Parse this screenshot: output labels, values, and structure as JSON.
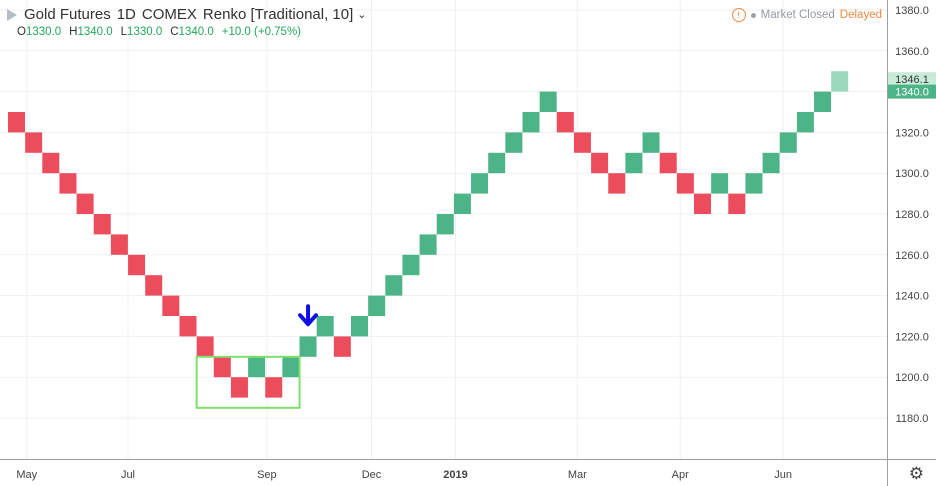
{
  "header": {
    "symbol": "Gold Futures",
    "interval": "1D",
    "exchange": "COMEX",
    "chart_style": "Renko [Traditional, 10]",
    "ohlc": {
      "o_label": "O",
      "o_value": "1330.0",
      "h_label": "H",
      "h_value": "1340.0",
      "l_label": "L",
      "l_value": "1330.0",
      "c_label": "C",
      "c_value": "1340.0",
      "change": "+10.0 (+0.75%)"
    }
  },
  "status": {
    "market": "Market Closed",
    "feed": "Delayed"
  },
  "icons": {
    "symbol_flag": "flag-icon",
    "warning": "warning-icon",
    "settings": "gear-icon",
    "signal": "down-arrow-icon"
  },
  "colors": {
    "up": "#4cb486",
    "down": "#eb4d5c",
    "projected": "#9bd9bd",
    "highlight_box": "#7ee06a",
    "arrow": "#1010e6",
    "price_tag_projected": "#c9ecd9",
    "price_tag_last": "#4cb486"
  },
  "chart_data": {
    "type": "renko",
    "box_size": 10,
    "y_ticks": [
      1180,
      1200,
      1220,
      1240,
      1260,
      1280,
      1300,
      1320,
      1340,
      1360,
      1380
    ],
    "y_tick_labels": [
      "1180.0",
      "1200.0",
      "1220.0",
      "1240.0",
      "1260.0",
      "1280.0",
      "1300.0",
      "1320.0",
      "1340.0",
      "1360.0",
      "1380.0"
    ],
    "ylim": [
      1160,
      1390
    ],
    "x_labels": [
      "May",
      "Jul",
      "Sep",
      "Dec",
      "2019",
      "Mar",
      "Apr",
      "Jun"
    ],
    "x_label_bricks": [
      0.6,
      6.5,
      14.6,
      20.7,
      25.6,
      32.7,
      38.7,
      44.7
    ],
    "bricks": [
      {
        "low": 1320,
        "dir": "down"
      },
      {
        "low": 1310,
        "dir": "down"
      },
      {
        "low": 1300,
        "dir": "down"
      },
      {
        "low": 1290,
        "dir": "down"
      },
      {
        "low": 1280,
        "dir": "down"
      },
      {
        "low": 1270,
        "dir": "down"
      },
      {
        "low": 1260,
        "dir": "down"
      },
      {
        "low": 1250,
        "dir": "down"
      },
      {
        "low": 1240,
        "dir": "down"
      },
      {
        "low": 1230,
        "dir": "down"
      },
      {
        "low": 1220,
        "dir": "down"
      },
      {
        "low": 1210,
        "dir": "down"
      },
      {
        "low": 1200,
        "dir": "down"
      },
      {
        "low": 1190,
        "dir": "down"
      },
      {
        "low": 1200,
        "dir": "up"
      },
      {
        "low": 1190,
        "dir": "down"
      },
      {
        "low": 1200,
        "dir": "up"
      },
      {
        "low": 1210,
        "dir": "up"
      },
      {
        "low": 1220,
        "dir": "up"
      },
      {
        "low": 1210,
        "dir": "down"
      },
      {
        "low": 1220,
        "dir": "up"
      },
      {
        "low": 1230,
        "dir": "up"
      },
      {
        "low": 1240,
        "dir": "up"
      },
      {
        "low": 1250,
        "dir": "up"
      },
      {
        "low": 1260,
        "dir": "up"
      },
      {
        "low": 1270,
        "dir": "up"
      },
      {
        "low": 1280,
        "dir": "up"
      },
      {
        "low": 1290,
        "dir": "up"
      },
      {
        "low": 1300,
        "dir": "up"
      },
      {
        "low": 1310,
        "dir": "up"
      },
      {
        "low": 1320,
        "dir": "up"
      },
      {
        "low": 1330,
        "dir": "up"
      },
      {
        "low": 1320,
        "dir": "down"
      },
      {
        "low": 1310,
        "dir": "down"
      },
      {
        "low": 1300,
        "dir": "down"
      },
      {
        "low": 1290,
        "dir": "down"
      },
      {
        "low": 1300,
        "dir": "up"
      },
      {
        "low": 1310,
        "dir": "up"
      },
      {
        "low": 1300,
        "dir": "down"
      },
      {
        "low": 1290,
        "dir": "down"
      },
      {
        "low": 1280,
        "dir": "down"
      },
      {
        "low": 1290,
        "dir": "up"
      },
      {
        "low": 1280,
        "dir": "down"
      },
      {
        "low": 1290,
        "dir": "up"
      },
      {
        "low": 1300,
        "dir": "up"
      },
      {
        "low": 1310,
        "dir": "up"
      },
      {
        "low": 1320,
        "dir": "up"
      },
      {
        "low": 1330,
        "dir": "up"
      },
      {
        "low": 1340,
        "dir": "projected"
      }
    ],
    "price_tags": [
      {
        "label": "1346.1",
        "value": 1346.1,
        "kind": "projected"
      },
      {
        "label": "1340.0",
        "value": 1340.0,
        "kind": "last"
      }
    ],
    "highlight_box": {
      "brick_start": 11,
      "brick_end": 17,
      "low": 1185,
      "high": 1210
    },
    "signal_arrow": {
      "brick": 17,
      "value": 1225
    },
    "grid": true
  }
}
